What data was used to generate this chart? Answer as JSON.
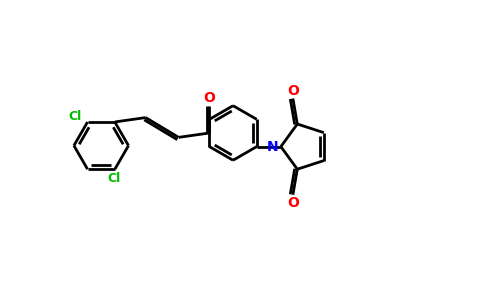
{
  "bg_color": "#ffffff",
  "bond_color": "#000000",
  "cl_color": "#00bb00",
  "o_color": "#ff0000",
  "n_color": "#0000ff",
  "lw": 2.0,
  "dbo": 0.06,
  "figsize": [
    4.84,
    3.0
  ],
  "dpi": 100,
  "xlim": [
    -0.5,
    10.5
  ],
  "ylim": [
    0,
    6.2
  ]
}
